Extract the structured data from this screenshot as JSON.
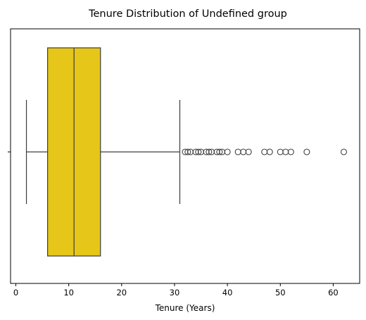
{
  "chart_data": {
    "type": "boxplot",
    "orientation": "horizontal",
    "title": "Tenure Distribution of Undefined group",
    "xlabel": "Tenure (Years)",
    "ylabel": "",
    "xlim": [
      -1,
      65
    ],
    "xticks": [
      0,
      10,
      20,
      30,
      40,
      50,
      60
    ],
    "xtick_labels": [
      "0",
      "10",
      "20",
      "30",
      "40",
      "50",
      "60"
    ],
    "grid": false,
    "box_color": "#e6c619",
    "line_color": "#3d3d3d",
    "series": {
      "whisker_low": 2,
      "q1": 6,
      "median": 11,
      "q3": 16,
      "whisker_high": 31,
      "outliers": [
        32,
        32.5,
        33,
        34,
        34.5,
        35,
        36,
        36.5,
        37,
        38,
        38.5,
        39,
        40,
        42,
        43,
        44,
        47,
        48,
        50,
        51,
        52,
        55,
        62
      ]
    }
  }
}
